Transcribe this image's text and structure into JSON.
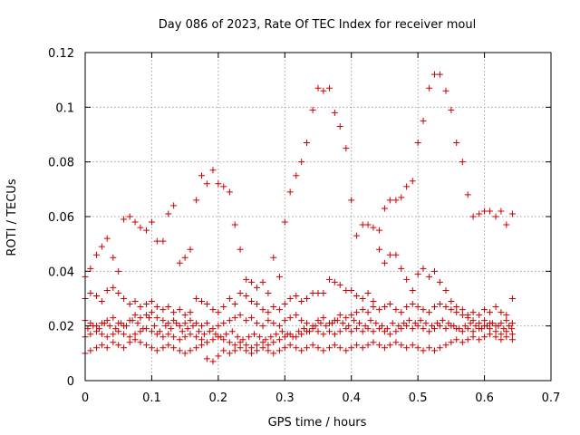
{
  "chart_data": {
    "type": "scatter",
    "title": "Day 086 of 2023, Rate Of TEC Index for receiver moul",
    "xlabel": "GPS time / hours",
    "ylabel": "ROTI / TECUs",
    "xlim": [
      0,
      0.7
    ],
    "ylim": [
      0,
      0.12
    ],
    "xticks": [
      0,
      0.1,
      0.2,
      0.3,
      0.4,
      0.5,
      0.6,
      0.7
    ],
    "yticks": [
      0,
      0.02,
      0.04,
      0.06,
      0.08,
      0.1,
      0.12
    ],
    "xtick_labels": [
      "0",
      "0.1",
      "0.2",
      "0.3",
      "0.4",
      "0.5",
      "0.6",
      "0.7"
    ],
    "ytick_labels": [
      "0",
      "0.02",
      "0.04",
      "0.06",
      "0.08",
      "0.1",
      "0.12"
    ],
    "grid": true,
    "marker": "+",
    "color": "#cc0000",
    "series": [
      {
        "name": "ROTI",
        "x": [
          0,
          0.008,
          0.017,
          0.025,
          0.033,
          0.042,
          0.05,
          0.058,
          0.067,
          0.075,
          0.083,
          0.092,
          0.1,
          0.108,
          0.117,
          0.125,
          0.133,
          0.142,
          0.15,
          0.158,
          0.167,
          0.175,
          0.183,
          0.192,
          0.2,
          0.208,
          0.217,
          0.225,
          0.233,
          0.242,
          0.25,
          0.258,
          0.267,
          0.275,
          0.283,
          0.292,
          0.3,
          0.308,
          0.317,
          0.325,
          0.333,
          0.342,
          0.35,
          0.358,
          0.367,
          0.375,
          0.383,
          0.392,
          0.4,
          0.408,
          0.417,
          0.425,
          0.433,
          0.442,
          0.45,
          0.458,
          0.467,
          0.475,
          0.483,
          0.492,
          0.5,
          0.508,
          0.517,
          0.525,
          0.533,
          0.542,
          0.55,
          0.558,
          0.567,
          0.575,
          0.583,
          0.592,
          0.6,
          0.608,
          0.617,
          0.625,
          0.633,
          0.642,
          0,
          0.008,
          0.017,
          0.025,
          0.033,
          0.042,
          0.05,
          0.058,
          0.067,
          0.075,
          0.083,
          0.092,
          0.1,
          0.108,
          0.117,
          0.125,
          0.133,
          0.142,
          0.15,
          0.158,
          0.167,
          0.175,
          0.183,
          0.192,
          0.2,
          0.208,
          0.217,
          0.225,
          0.233,
          0.242,
          0.25,
          0.258,
          0.267,
          0.275,
          0.283,
          0.292,
          0.3,
          0.308,
          0.317,
          0.325,
          0.333,
          0.342,
          0.35,
          0.358,
          0.367,
          0.375,
          0.383,
          0.392,
          0.4,
          0.408,
          0.417,
          0.425,
          0.433,
          0.442,
          0.45,
          0.458,
          0.467,
          0.475,
          0.483,
          0.492,
          0.5,
          0.508,
          0.517,
          0.525,
          0.533,
          0.542,
          0.55,
          0.558,
          0.567,
          0.575,
          0.583,
          0.592,
          0.6,
          0.608,
          0.617,
          0.625,
          0.633,
          0.642,
          0,
          0.008,
          0.017,
          0.025,
          0.033,
          0.042,
          0.05,
          0.058,
          0.067,
          0.075,
          0.083,
          0.092,
          0.1,
          0.108,
          0.117,
          0.125,
          0.133,
          0.142,
          0.15,
          0.158,
          0.167,
          0.175,
          0.183,
          0.192,
          0.2,
          0.208,
          0.217,
          0.225,
          0.233,
          0.242,
          0.25,
          0.258,
          0.267,
          0.275,
          0.283,
          0.292,
          0.3,
          0.308,
          0.317,
          0.325,
          0.333,
          0.342,
          0.35,
          0.358,
          0.367,
          0.375,
          0.383,
          0.392,
          0.4,
          0.408,
          0.417,
          0.425,
          0.433,
          0.442,
          0.45,
          0.458,
          0.467,
          0.475,
          0.483,
          0.492,
          0.5,
          0.508,
          0.517,
          0.525,
          0.533,
          0.542,
          0.55,
          0.558,
          0.567,
          0.575,
          0.583,
          0.592,
          0.6,
          0.608,
          0.617,
          0.625,
          0.633,
          0.642,
          0,
          0.008,
          0.017,
          0.025,
          0.033,
          0.042,
          0.05,
          0.058,
          0.067,
          0.075,
          0.083,
          0.092,
          0.1,
          0.108,
          0.117,
          0.125,
          0.133,
          0.142,
          0.15,
          0.158,
          0.167,
          0.175,
          0.183,
          0.192,
          0.2,
          0.208,
          0.217,
          0.225,
          0.233,
          0.242,
          0.25,
          0.258,
          0.267,
          0.275,
          0.283,
          0.292,
          0.3,
          0.308,
          0.317,
          0.325,
          0.333,
          0.342,
          0.35,
          0.358,
          0.367,
          0.375,
          0.383,
          0.392,
          0.4,
          0.408,
          0.417,
          0.425,
          0.433,
          0.442,
          0.45,
          0.458,
          0.467,
          0.475,
          0.483,
          0.492,
          0.5,
          0.508,
          0.517,
          0.525,
          0.533,
          0.542,
          0.55,
          0.558,
          0.567,
          0.575,
          0.583,
          0.592,
          0.6,
          0.608,
          0.617,
          0.625,
          0.633,
          0.642,
          0,
          0.008,
          0.017,
          0.025,
          0.033,
          0.042,
          0.05,
          0.058,
          0.067,
          0.075,
          0.083,
          0.092,
          0.1,
          0.108,
          0.117,
          0.125,
          0.133,
          0.142,
          0.15,
          0.158,
          0.167,
          0.175,
          0.183,
          0.192,
          0.2,
          0.208,
          0.217,
          0.225,
          0.233,
          0.242,
          0.25,
          0.258,
          0.267,
          0.275,
          0.283,
          0.292,
          0.3,
          0.308,
          0.317,
          0.325,
          0.333,
          0.342,
          0.35,
          0.358,
          0.367,
          0.375,
          0.383,
          0.392,
          0.4,
          0.408,
          0.417,
          0.425,
          0.433,
          0.442,
          0.45,
          0.458,
          0.467,
          0.475,
          0.483,
          0.492,
          0.5,
          0.508,
          0.517,
          0.525,
          0.533,
          0.542,
          0.55,
          0.558,
          0.567,
          0.575,
          0.583,
          0.592,
          0.6,
          0.608,
          0.617,
          0.625,
          0.633,
          0.642,
          0.004,
          0.012,
          0.021,
          0.029,
          0.037,
          0.046,
          0.054,
          0.062,
          0.071,
          0.079,
          0.087,
          0.096,
          0.104,
          0.112,
          0.121,
          0.129,
          0.137,
          0.146,
          0.154,
          0.162,
          0.171,
          0.179,
          0.187,
          0.196,
          0.204,
          0.212,
          0.221,
          0.229,
          0.237,
          0.246,
          0.254,
          0.262,
          0.271,
          0.279,
          0.287,
          0.296,
          0.304,
          0.312,
          0.321,
          0.329,
          0.337,
          0.346,
          0.354,
          0.362,
          0.371,
          0.379,
          0.387,
          0.396,
          0.404,
          0.412,
          0.421,
          0.429,
          0.437,
          0.446,
          0.454,
          0.462,
          0.471,
          0.479,
          0.487,
          0.496,
          0.504,
          0.512,
          0.521,
          0.529,
          0.537,
          0.546,
          0.554,
          0.562,
          0.571,
          0.579,
          0.587,
          0.596,
          0.604,
          0.612,
          0.621,
          0.629,
          0.637,
          0.641
        ],
        "y": [
          0.038,
          0.041,
          0.046,
          0.049,
          0.052,
          0.045,
          0.04,
          0.059,
          0.06,
          0.058,
          0.056,
          0.055,
          0.058,
          0.051,
          0.051,
          0.061,
          0.064,
          0.043,
          0.045,
          0.048,
          0.066,
          0.075,
          0.072,
          0.077,
          0.072,
          0.071,
          0.069,
          0.057,
          0.048,
          0.037,
          0.036,
          0.034,
          0.036,
          0.032,
          0.045,
          0.038,
          0.058,
          0.069,
          0.075,
          0.08,
          0.087,
          0.099,
          0.107,
          0.106,
          0.107,
          0.098,
          0.093,
          0.085,
          0.066,
          0.053,
          0.057,
          0.057,
          0.056,
          0.055,
          0.063,
          0.066,
          0.066,
          0.067,
          0.071,
          0.073,
          0.087,
          0.095,
          0.107,
          0.112,
          0.112,
          0.106,
          0.099,
          0.087,
          0.08,
          0.068,
          0.06,
          0.061,
          0.062,
          0.062,
          0.06,
          0.062,
          0.057,
          0.061,
          0.03,
          0.032,
          0.031,
          0.029,
          0.033,
          0.034,
          0.032,
          0.03,
          0.028,
          0.029,
          0.027,
          0.028,
          0.029,
          0.027,
          0.026,
          0.027,
          0.025,
          0.026,
          0.024,
          0.025,
          0.03,
          0.029,
          0.028,
          0.026,
          0.025,
          0.027,
          0.03,
          0.028,
          0.032,
          0.031,
          0.029,
          0.028,
          0.026,
          0.025,
          0.027,
          0.026,
          0.028,
          0.03,
          0.031,
          0.029,
          0.03,
          0.032,
          0.032,
          0.032,
          0.037,
          0.036,
          0.035,
          0.033,
          0.033,
          0.031,
          0.03,
          0.032,
          0.029,
          0.048,
          0.043,
          0.046,
          0.046,
          0.041,
          0.037,
          0.033,
          0.039,
          0.041,
          0.038,
          0.04,
          0.036,
          0.033,
          0.029,
          0.027,
          0.026,
          0.024,
          0.025,
          0.024,
          0.026,
          0.025,
          0.027,
          0.025,
          0.024,
          0.03,
          0.022,
          0.021,
          0.02,
          0.021,
          0.022,
          0.023,
          0.021,
          0.02,
          0.022,
          0.024,
          0.023,
          0.024,
          0.025,
          0.023,
          0.022,
          0.021,
          0.022,
          0.02,
          0.021,
          0.022,
          0.021,
          0.02,
          0.021,
          0.019,
          0.02,
          0.021,
          0.022,
          0.023,
          0.024,
          0.022,
          0.023,
          0.021,
          0.02,
          0.022,
          0.021,
          0.02,
          0.022,
          0.023,
          0.024,
          0.022,
          0.021,
          0.02,
          0.022,
          0.023,
          0.021,
          0.022,
          0.024,
          0.023,
          0.024,
          0.025,
          0.026,
          0.025,
          0.027,
          0.026,
          0.027,
          0.028,
          0.026,
          0.025,
          0.027,
          0.028,
          0.027,
          0.026,
          0.025,
          0.027,
          0.028,
          0.027,
          0.026,
          0.025,
          0.024,
          0.023,
          0.022,
          0.021,
          0.022,
          0.021,
          0.02,
          0.021,
          0.022,
          0.021,
          0.016,
          0.017,
          0.018,
          0.017,
          0.016,
          0.017,
          0.018,
          0.017,
          0.016,
          0.017,
          0.018,
          0.019,
          0.018,
          0.017,
          0.016,
          0.017,
          0.016,
          0.015,
          0.016,
          0.017,
          0.016,
          0.015,
          0.014,
          0.015,
          0.016,
          0.015,
          0.014,
          0.013,
          0.014,
          0.013,
          0.012,
          0.013,
          0.014,
          0.013,
          0.014,
          0.015,
          0.016,
          0.017,
          0.016,
          0.017,
          0.018,
          0.019,
          0.018,
          0.017,
          0.018,
          0.017,
          0.018,
          0.019,
          0.018,
          0.019,
          0.018,
          0.019,
          0.018,
          0.019,
          0.018,
          0.017,
          0.018,
          0.019,
          0.02,
          0.019,
          0.02,
          0.019,
          0.018,
          0.019,
          0.02,
          0.019,
          0.02,
          0.019,
          0.018,
          0.019,
          0.018,
          0.019,
          0.02,
          0.019,
          0.018,
          0.017,
          0.018,
          0.017,
          0.01,
          0.011,
          0.012,
          0.013,
          0.012,
          0.014,
          0.013,
          0.012,
          0.014,
          0.015,
          0.014,
          0.013,
          0.012,
          0.011,
          0.012,
          0.013,
          0.012,
          0.011,
          0.01,
          0.011,
          0.012,
          0.013,
          0.008,
          0.007,
          0.009,
          0.011,
          0.01,
          0.011,
          0.012,
          0.011,
          0.01,
          0.011,
          0.012,
          0.011,
          0.01,
          0.011,
          0.012,
          0.013,
          0.012,
          0.011,
          0.012,
          0.013,
          0.012,
          0.011,
          0.012,
          0.013,
          0.012,
          0.011,
          0.012,
          0.013,
          0.012,
          0.013,
          0.014,
          0.013,
          0.012,
          0.013,
          0.014,
          0.013,
          0.012,
          0.013,
          0.012,
          0.011,
          0.012,
          0.011,
          0.012,
          0.013,
          0.014,
          0.015,
          0.014,
          0.015,
          0.016,
          0.015,
          0.016,
          0.017,
          0.016,
          0.015,
          0.016,
          0.015,
          0.019,
          0.02,
          0.019,
          0.021,
          0.02,
          0.019,
          0.021,
          0.02,
          0.022,
          0.021,
          0.019,
          0.023,
          0.02,
          0.018,
          0.02,
          0.019,
          0.021,
          0.018,
          0.019,
          0.02,
          0.018,
          0.017,
          0.018,
          0.017,
          0.016,
          0.017,
          0.018,
          0.016,
          0.015,
          0.016,
          0.017,
          0.016,
          0.015,
          0.016,
          0.017,
          0.018,
          0.017,
          0.016,
          0.018,
          0.019,
          0.018,
          0.02,
          0.021,
          0.02,
          0.021,
          0.022,
          0.021,
          0.02,
          0.022,
          0.021,
          0.02,
          0.022,
          0.021,
          0.02,
          0.019,
          0.021,
          0.02,
          0.021,
          0.022,
          0.021,
          0.022,
          0.021,
          0.02,
          0.021,
          0.022,
          0.021,
          0.02,
          0.019,
          0.02,
          0.021,
          0.02,
          0.019,
          0.02,
          0.021,
          0.02,
          0.019,
          0.02,
          0.019
        ]
      }
    ]
  }
}
